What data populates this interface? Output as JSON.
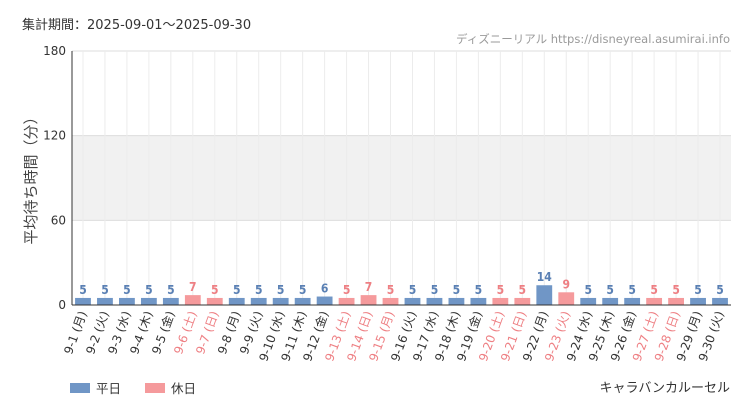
{
  "header": {
    "period": "集計期間：2025-09-01～2025-09-30",
    "source": "ディズニーリアル https://disneyreal.asumirai.info"
  },
  "legend": {
    "weekday_label": "平日",
    "holiday_label": "休日"
  },
  "footer": {
    "attraction": "キャラバンカルーセル"
  },
  "colors": {
    "weekday": "#7096c6",
    "holiday": "#f59a9c",
    "weekday_text": "#5a80b4",
    "holiday_text": "#ee7f83",
    "band": "#f1f1f1",
    "axis": "#333333"
  },
  "chart_data": {
    "type": "bar",
    "ylabel": "平均待ち時間（分）",
    "ylim": [
      0,
      180
    ],
    "yticks": [
      0,
      60,
      120,
      180
    ],
    "shaded_band": [
      60,
      120
    ],
    "categories": [
      "9-1 (月)",
      "9-2 (火)",
      "9-3 (水)",
      "9-4 (木)",
      "9-5 (金)",
      "9-6 (土)",
      "9-7 (日)",
      "9-8 (月)",
      "9-9 (火)",
      "9-10 (水)",
      "9-11 (木)",
      "9-12 (金)",
      "9-13 (土)",
      "9-14 (日)",
      "9-15 (月)",
      "9-16 (火)",
      "9-17 (水)",
      "9-18 (木)",
      "9-19 (金)",
      "9-20 (土)",
      "9-21 (日)",
      "9-22 (月)",
      "9-23 (火)",
      "9-24 (水)",
      "9-25 (木)",
      "9-26 (金)",
      "9-27 (土)",
      "9-28 (日)",
      "9-29 (月)",
      "9-30 (火)"
    ],
    "values": [
      5,
      5,
      5,
      5,
      5,
      7,
      5,
      5,
      5,
      5,
      5,
      6,
      5,
      7,
      5,
      5,
      5,
      5,
      5,
      5,
      5,
      14,
      9,
      5,
      5,
      5,
      5,
      5,
      5,
      5
    ],
    "holiday": [
      false,
      false,
      false,
      false,
      false,
      true,
      true,
      false,
      false,
      false,
      false,
      false,
      true,
      true,
      true,
      false,
      false,
      false,
      false,
      true,
      true,
      false,
      true,
      false,
      false,
      false,
      true,
      true,
      false,
      false
    ],
    "series": [
      {
        "name": "平日"
      },
      {
        "name": "休日"
      }
    ]
  }
}
